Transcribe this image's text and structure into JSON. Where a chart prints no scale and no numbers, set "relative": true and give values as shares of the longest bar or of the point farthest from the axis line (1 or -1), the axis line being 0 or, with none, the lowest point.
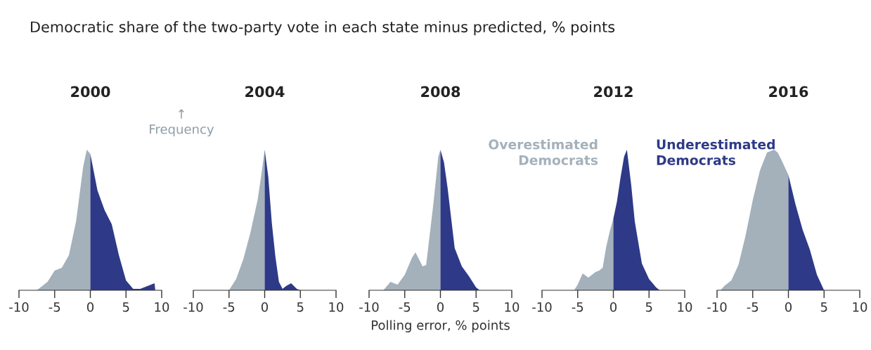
{
  "chart_data": [
    {
      "type": "area",
      "title": "2000",
      "relative": true,
      "xlim": [
        -10,
        10
      ],
      "xticks": [
        -10,
        -5,
        0,
        5,
        10
      ],
      "tick_labels": "x",
      "grid": false,
      "legend": false,
      "annotations": [
        "Democratic share of the two-party vote in each state minus predicted, % points",
        "↑\nFrequency"
      ],
      "series": [
        {
          "color": "#a4b1bb",
          "x": [
            -7.5,
            -6,
            -5,
            -4,
            -3,
            -2,
            -1,
            -0.5,
            0
          ],
          "values": [
            0,
            0.06,
            0.14,
            0.16,
            0.25,
            0.49,
            0.88,
            1,
            0.97
          ]
        },
        {
          "color": "#2e3a87",
          "x": [
            0,
            1,
            2,
            3,
            4,
            5,
            6,
            7,
            8,
            9,
            9.1
          ],
          "values": [
            0.97,
            0.71,
            0.57,
            0.47,
            0.25,
            0.07,
            0.01,
            0.01,
            0.03,
            0.05,
            0
          ]
        }
      ]
    },
    {
      "type": "area",
      "title": "2004",
      "relative": true,
      "xlim": [
        -10,
        10
      ],
      "xticks": [
        -10,
        -5,
        0,
        5,
        10
      ],
      "tick_labels": "x",
      "grid": false,
      "legend": false,
      "series": [
        {
          "color": "#a4b1bb",
          "x": [
            -5,
            -4,
            -3,
            -2,
            -1,
            -0.5,
            0
          ],
          "values": [
            0,
            0.08,
            0.22,
            0.41,
            0.64,
            0.81,
            1
          ]
        },
        {
          "color": "#2e3a87",
          "x": [
            0,
            0.5,
            1,
            1.5,
            2,
            2.5,
            3,
            3.7,
            4.5,
            5
          ],
          "values": [
            1,
            0.81,
            0.48,
            0.24,
            0.06,
            0.01,
            0.03,
            0.05,
            0.01,
            0
          ]
        }
      ]
    },
    {
      "type": "area",
      "title": "2008",
      "relative": true,
      "xlim": [
        -10,
        10
      ],
      "xticks": [
        -10,
        -5,
        0,
        5,
        10
      ],
      "tick_labels": "x",
      "grid": false,
      "legend": false,
      "xlabel": "Polling error, % points",
      "series": [
        {
          "color": "#a4b1bb",
          "x": [
            -8,
            -7,
            -6,
            -5,
            -4,
            -3.5,
            -2.5,
            -2,
            -1,
            -0.3,
            0
          ],
          "values": [
            0,
            0.06,
            0.04,
            0.11,
            0.23,
            0.27,
            0.17,
            0.18,
            0.61,
            0.95,
            1
          ]
        },
        {
          "color": "#2e3a87",
          "x": [
            0,
            0.5,
            1,
            2,
            3,
            4,
            5,
            5.5
          ],
          "values": [
            1,
            0.91,
            0.73,
            0.3,
            0.17,
            0.1,
            0.02,
            0
          ]
        }
      ]
    },
    {
      "type": "area",
      "title": "2012",
      "relative": true,
      "xlim": [
        -10,
        10
      ],
      "xticks": [
        -10,
        -5,
        0,
        5,
        10
      ],
      "tick_labels": "x",
      "grid": false,
      "legend": false,
      "annotations": [
        "Overestimated\nDemocrats",
        "Underestimated\nDemocrats"
      ],
      "series": [
        {
          "color": "#a4b1bb",
          "x": [
            -5.5,
            -5,
            -4.3,
            -3.5,
            -2.5,
            -2,
            -1.5,
            -1,
            -0.5,
            0
          ],
          "values": [
            0,
            0.04,
            0.12,
            0.09,
            0.13,
            0.14,
            0.16,
            0.31,
            0.42,
            0.51
          ]
        },
        {
          "color": "#2e3a87",
          "x": [
            0,
            0.5,
            1,
            1.5,
            1.9,
            2.5,
            3,
            4,
            5,
            6,
            6.5
          ],
          "values": [
            0.51,
            0.63,
            0.8,
            0.95,
            1,
            0.75,
            0.49,
            0.19,
            0.08,
            0.02,
            0
          ]
        }
      ]
    },
    {
      "type": "area",
      "title": "2016",
      "relative": true,
      "xlim": [
        -10,
        10
      ],
      "xticks": [
        -10,
        -5,
        0,
        5,
        10
      ],
      "tick_labels": "x",
      "grid": false,
      "legend": false,
      "series": [
        {
          "color": "#a4b1bb",
          "x": [
            -9.5,
            -9,
            -8,
            -7,
            -6,
            -5,
            -4,
            -3,
            -2,
            -1.5,
            -1,
            0
          ],
          "values": [
            0,
            0.03,
            0.07,
            0.18,
            0.39,
            0.64,
            0.85,
            0.98,
            1,
            0.98,
            0.93,
            0.82
          ]
        },
        {
          "color": "#2e3a87",
          "x": [
            0,
            1,
            2,
            3,
            4,
            5
          ],
          "values": [
            0.82,
            0.61,
            0.43,
            0.29,
            0.11,
            0
          ]
        }
      ]
    }
  ]
}
